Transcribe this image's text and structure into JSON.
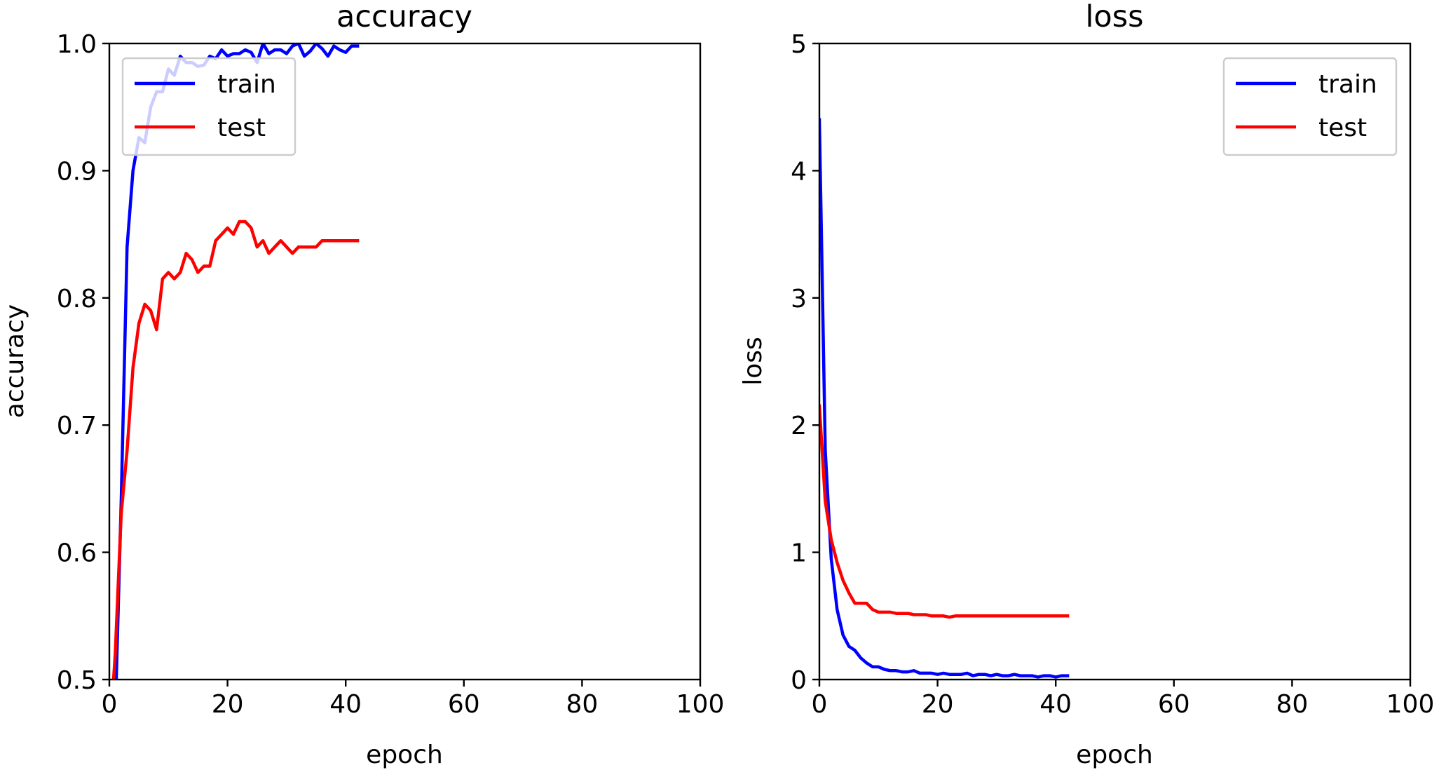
{
  "chart_data": [
    {
      "type": "line",
      "title": "accuracy",
      "xlabel": "epoch",
      "ylabel": "accuracy",
      "xlim": [
        0,
        100
      ],
      "ylim": [
        0.5,
        1.0
      ],
      "xticks": [
        "0",
        "20",
        "40",
        "60",
        "80",
        "100"
      ],
      "yticks": [
        "0.5",
        "0.6",
        "0.7",
        "0.8",
        "0.9",
        "1.0"
      ],
      "grid": false,
      "legend": "upper-left",
      "x": [
        0,
        1,
        2,
        3,
        4,
        5,
        6,
        7,
        8,
        9,
        10,
        11,
        12,
        13,
        14,
        15,
        16,
        17,
        18,
        19,
        20,
        21,
        22,
        23,
        24,
        25,
        26,
        27,
        28,
        29,
        30,
        31,
        32,
        33,
        34,
        35,
        36,
        37,
        38,
        39,
        40,
        41,
        42
      ],
      "series": [
        {
          "name": "train",
          "color": "#0000ff",
          "values": [
            0.4,
            0.47,
            0.64,
            0.84,
            0.9,
            0.926,
            0.922,
            0.95,
            0.962,
            0.962,
            0.98,
            0.975,
            0.99,
            0.985,
            0.985,
            0.982,
            0.983,
            0.99,
            0.988,
            0.995,
            0.99,
            0.992,
            0.992,
            0.995,
            0.993,
            0.985,
            1.0,
            0.992,
            0.995,
            0.995,
            0.992,
            0.998,
            1.0,
            0.99,
            0.994,
            1.0,
            0.996,
            0.99,
            0.998,
            0.995,
            0.993,
            0.998,
            0.998
          ]
        },
        {
          "name": "test",
          "color": "#ff0000",
          "values": [
            0.45,
            0.52,
            0.63,
            0.68,
            0.745,
            0.78,
            0.795,
            0.79,
            0.775,
            0.815,
            0.82,
            0.815,
            0.82,
            0.835,
            0.83,
            0.82,
            0.825,
            0.825,
            0.845,
            0.85,
            0.855,
            0.85,
            0.86,
            0.86,
            0.855,
            0.84,
            0.845,
            0.835,
            0.84,
            0.845,
            0.84,
            0.835,
            0.84,
            0.84,
            0.84,
            0.84,
            0.845,
            0.845,
            0.845,
            0.845,
            0.845,
            0.845,
            0.845
          ]
        }
      ]
    },
    {
      "type": "line",
      "title": "loss",
      "xlabel": "epoch",
      "ylabel": "loss",
      "xlim": [
        0,
        100
      ],
      "ylim": [
        0,
        5
      ],
      "xticks": [
        "0",
        "20",
        "40",
        "60",
        "80",
        "100"
      ],
      "yticks": [
        "0",
        "1",
        "2",
        "3",
        "4",
        "5"
      ],
      "grid": false,
      "legend": "upper-right",
      "x": [
        0,
        1,
        2,
        3,
        4,
        5,
        6,
        7,
        8,
        9,
        10,
        11,
        12,
        13,
        14,
        15,
        16,
        17,
        18,
        19,
        20,
        21,
        22,
        23,
        24,
        25,
        26,
        27,
        28,
        29,
        30,
        31,
        32,
        33,
        34,
        35,
        36,
        37,
        38,
        39,
        40,
        41,
        42
      ],
      "series": [
        {
          "name": "train",
          "color": "#0000ff",
          "values": [
            4.4,
            1.8,
            0.95,
            0.55,
            0.35,
            0.26,
            0.23,
            0.17,
            0.13,
            0.1,
            0.1,
            0.08,
            0.07,
            0.07,
            0.06,
            0.06,
            0.07,
            0.05,
            0.05,
            0.05,
            0.04,
            0.05,
            0.04,
            0.04,
            0.04,
            0.05,
            0.03,
            0.04,
            0.04,
            0.03,
            0.04,
            0.03,
            0.03,
            0.04,
            0.03,
            0.03,
            0.03,
            0.02,
            0.03,
            0.03,
            0.02,
            0.03,
            0.03
          ]
        },
        {
          "name": "test",
          "color": "#ff0000",
          "values": [
            2.15,
            1.4,
            1.1,
            0.92,
            0.78,
            0.68,
            0.6,
            0.6,
            0.6,
            0.55,
            0.53,
            0.53,
            0.53,
            0.52,
            0.52,
            0.52,
            0.51,
            0.51,
            0.51,
            0.5,
            0.5,
            0.5,
            0.49,
            0.5,
            0.5,
            0.5,
            0.5,
            0.5,
            0.5,
            0.5,
            0.5,
            0.5,
            0.5,
            0.5,
            0.5,
            0.5,
            0.5,
            0.5,
            0.5,
            0.5,
            0.5,
            0.5,
            0.5
          ]
        }
      ]
    }
  ]
}
